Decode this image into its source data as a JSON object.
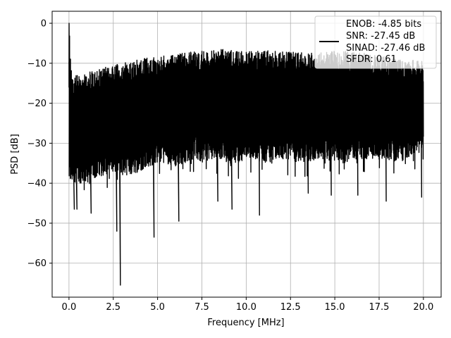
{
  "chart_data": {
    "type": "line",
    "title": "",
    "xlabel": "Frequency [MHz]",
    "ylabel": "PSD [dB]",
    "xlim": [
      -0.95,
      21.0
    ],
    "ylim": [
      -68.5,
      3.0
    ],
    "x_ticks": [
      0.0,
      2.5,
      5.0,
      7.5,
      10.0,
      12.5,
      15.0,
      17.5,
      20.0
    ],
    "x_tick_labels": [
      "0.0",
      "2.5",
      "5.0",
      "7.5",
      "10.0",
      "12.5",
      "15.0",
      "17.5",
      "20.0"
    ],
    "y_ticks": [
      0,
      -10,
      -20,
      -30,
      -40,
      -50,
      -60
    ],
    "y_tick_labels": [
      "0",
      "−10",
      "−20",
      "−30",
      "−40",
      "−50",
      "−60"
    ],
    "grid": true,
    "legend_position": "top-right",
    "line_color": "#000000",
    "legend_entries": [
      "ENOB: -4.85 bits",
      "SNR: -27.45 dB",
      "SINAD: -27.46 dB",
      "SFDR: 0.61"
    ],
    "series": [
      {
        "upper_envelope": {
          "x": [
            0.0,
            0.02,
            0.05,
            0.1,
            0.2,
            0.5,
            1.0,
            1.5,
            2.0,
            2.5,
            3.0,
            3.5,
            4.0,
            4.5,
            5.0,
            5.5,
            6.0,
            6.5,
            7.0,
            7.5,
            8.0,
            8.5,
            9.0,
            9.5,
            10.0,
            10.5,
            11.0,
            11.5,
            12.0,
            12.5,
            13.0,
            13.5,
            14.0,
            14.5,
            15.0,
            15.5,
            16.0,
            16.5,
            17.0,
            17.5,
            18.0,
            18.5,
            19.0,
            19.5,
            20.0
          ],
          "y": [
            -6,
            0,
            -5,
            -9,
            -13,
            -13,
            -12,
            -12,
            -11,
            -10.5,
            -10,
            -9.5,
            -9,
            -8.5,
            -8.5,
            -8,
            -7.5,
            -7.5,
            -7,
            -7,
            -7,
            -6.5,
            -6.5,
            -7,
            -7,
            -7,
            -6.5,
            -7,
            -7,
            -7,
            -7,
            -7,
            -7,
            -7,
            -7,
            -7,
            -7,
            -7.5,
            -7.5,
            -8,
            -8,
            -8.5,
            -9,
            -9,
            -9.5
          ]
        },
        "lower_envelope": {
          "x": [
            0.0,
            0.5,
            1.0,
            1.5,
            2.0,
            2.5,
            3.0,
            3.5,
            4.0,
            4.5,
            5.0,
            5.5,
            6.0,
            6.5,
            7.0,
            7.5,
            8.0,
            8.5,
            9.0,
            9.5,
            10.0,
            10.5,
            11.0,
            11.5,
            12.0,
            12.5,
            13.0,
            13.5,
            14.0,
            14.5,
            15.0,
            15.5,
            16.0,
            16.5,
            17.0,
            17.5,
            18.0,
            18.5,
            19.0,
            19.5,
            20.0
          ],
          "y": [
            -38,
            -38,
            -38,
            -37,
            -36,
            -35,
            -36,
            -36,
            -35,
            -34,
            -33,
            -33,
            -34,
            -33,
            -32,
            -33,
            -32,
            -32,
            -33,
            -33,
            -32,
            -32,
            -33,
            -33,
            -32,
            -32,
            -33,
            -33,
            -32,
            -32,
            -33,
            -33,
            -32,
            -32,
            -32,
            -32,
            -32,
            -33,
            -32,
            -31,
            -30
          ]
        },
        "deep_dips": {
          "x": [
            0.3,
            0.45,
            1.25,
            2.7,
            2.9,
            4.8,
            6.2,
            8.4,
            9.2,
            10.75,
            13.5,
            14.8,
            16.3,
            17.9,
            19.9
          ],
          "y": [
            -46.5,
            -46.5,
            -47.5,
            -52,
            -65.5,
            -53.5,
            -49.5,
            -44.5,
            -46.5,
            -48,
            -42.5,
            -43,
            -43,
            -44.5,
            -43.5
          ]
        }
      }
    ]
  }
}
